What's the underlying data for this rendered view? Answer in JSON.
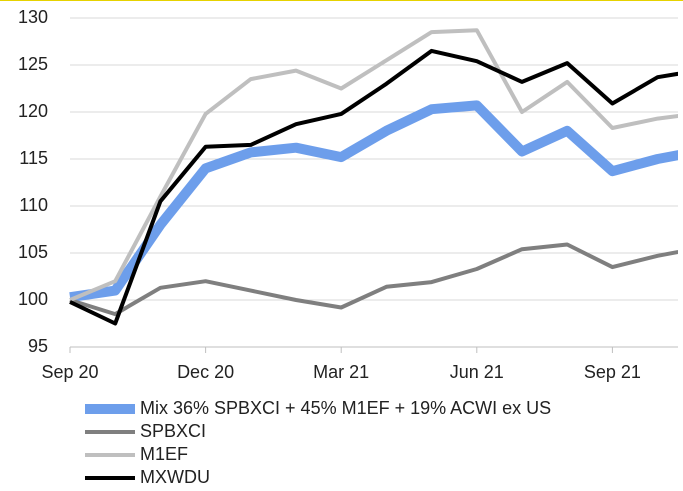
{
  "chart_data": {
    "type": "line",
    "categories": [
      "Sep 20",
      null,
      null,
      "Dec 20",
      null,
      null,
      "Mar 21",
      null,
      null,
      "Jun 21",
      null,
      null,
      "Sep 21",
      null,
      null
    ],
    "series": [
      {
        "name": "Mix 36% SPBXCI + 45% M1EF + 19% ACWI ex US",
        "color": "#6d9eeb",
        "width": 10,
        "values": [
          100.3,
          101,
          108,
          114,
          115.7,
          116.2,
          115.2,
          118,
          120.3,
          120.7,
          115.8,
          118,
          113.7,
          115,
          115.9
        ]
      },
      {
        "name": "SPBXCI",
        "color": "#7f7f7f",
        "width": 4,
        "values": [
          100,
          98.5,
          101.3,
          102,
          101,
          100,
          99.2,
          101.4,
          101.9,
          103.3,
          105.4,
          105.9,
          103.5,
          104.7,
          105.6
        ]
      },
      {
        "name": "M1EF",
        "color": "#bfbfbf",
        "width": 4,
        "values": [
          100,
          102,
          111,
          119.8,
          123.5,
          124.4,
          122.5,
          125.5,
          128.5,
          128.7,
          120,
          123.2,
          118.3,
          119.3,
          119.9
        ]
      },
      {
        "name": "MXWDU",
        "color": "#000000",
        "width": 4,
        "values": [
          99.8,
          97.5,
          110.5,
          116.3,
          116.5,
          118.7,
          119.8,
          123,
          126.5,
          125.4,
          123.2,
          125.2,
          120.9,
          123.7,
          124.5
        ]
      }
    ],
    "ylim": [
      95,
      130
    ],
    "yticks": [
      95,
      100,
      105,
      110,
      115,
      120,
      125,
      130
    ],
    "grid": true
  }
}
